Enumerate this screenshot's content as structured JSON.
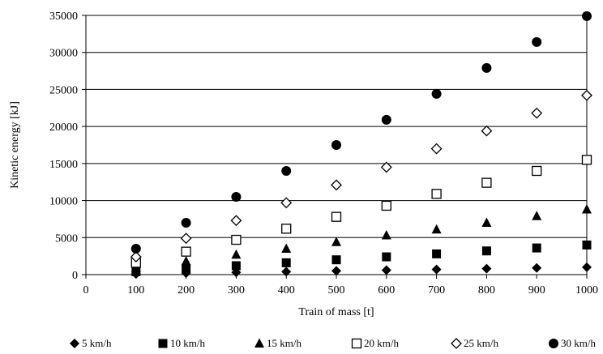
{
  "chart_data": {
    "type": "scatter",
    "title": "",
    "xlabel": "Train of mass [t]",
    "ylabel": "Kinetic  energy [kJ]",
    "xlim": [
      0,
      1000
    ],
    "ylim": [
      0,
      35000
    ],
    "xticks": [
      0,
      100,
      200,
      300,
      400,
      500,
      600,
      700,
      800,
      900,
      1000
    ],
    "yticks": [
      0,
      5000,
      10000,
      15000,
      20000,
      25000,
      30000,
      35000
    ],
    "grid": "horizontal",
    "legend_position": "bottom",
    "x": [
      100,
      200,
      300,
      400,
      500,
      600,
      700,
      800,
      900,
      1000
    ],
    "series": [
      {
        "name": "5 km/h",
        "marker": "diamond-filled",
        "values": [
          100,
          200,
          300,
          400,
          500,
          600,
          700,
          800,
          900,
          1000
        ]
      },
      {
        "name": "10 km/h",
        "marker": "square-filled",
        "values": [
          400,
          800,
          1200,
          1600,
          2000,
          2400,
          2800,
          3200,
          3600,
          4000
        ]
      },
      {
        "name": "15 km/h",
        "marker": "triangle-filled",
        "values": [
          900,
          1800,
          2700,
          3500,
          4400,
          5300,
          6100,
          7000,
          7900,
          8800
        ]
      },
      {
        "name": "20 km/h",
        "marker": "square-open",
        "values": [
          1600,
          3100,
          4700,
          6200,
          7800,
          9300,
          10900,
          12400,
          14000,
          15500
        ]
      },
      {
        "name": "25 km/h",
        "marker": "diamond-open",
        "values": [
          2400,
          4900,
          7300,
          9700,
          12100,
          14500,
          17000,
          19400,
          21800,
          24200
        ]
      },
      {
        "name": "30 km/h",
        "marker": "circle-filled",
        "values": [
          3500,
          7000,
          10500,
          14000,
          17500,
          20900,
          24400,
          27900,
          31400,
          34900
        ]
      }
    ]
  }
}
